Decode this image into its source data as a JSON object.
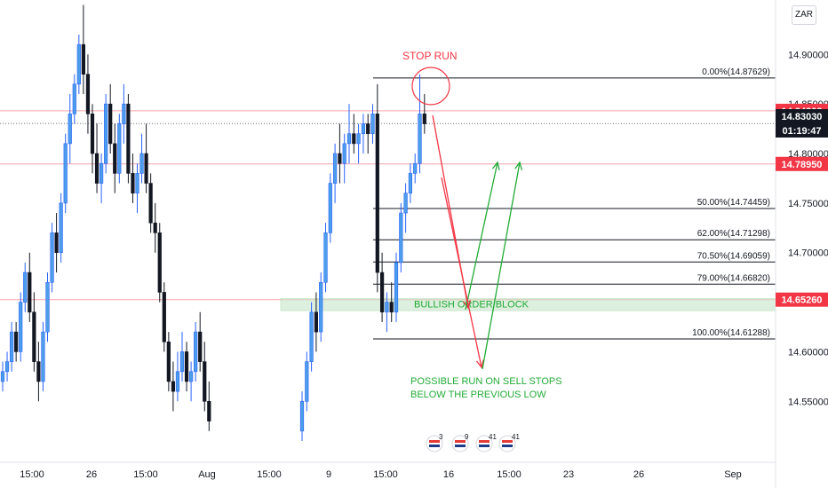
{
  "currency_button": "ZAR",
  "chart_data": {
    "type": "candlestick",
    "y_ticks": [
      "14.90000",
      "14.85000",
      "14.80000",
      "14.75000",
      "14.70000",
      "14.65000",
      "14.60000",
      "14.55000"
    ],
    "x_ticks": [
      "15:00",
      "26",
      "15:00",
      "Aug",
      "15:00",
      "9",
      "15:00",
      "16",
      "15:00",
      "23",
      "26",
      "Sep"
    ],
    "price_tags": [
      {
        "label": "14.84308",
        "value": 14.84308,
        "bg": "#f23645",
        "fg": "#ffffff"
      },
      {
        "label": "14.83030",
        "value": 14.8303,
        "bg": "#131722",
        "fg": "#ffffff"
      },
      {
        "label": "01:19:47",
        "value": 14.8235,
        "bg": "#131722",
        "fg": "#ffffff"
      },
      {
        "label": "14.78950",
        "value": 14.7895,
        "bg": "#f23645",
        "fg": "#ffffff"
      },
      {
        "label": "14.65260",
        "value": 14.6526,
        "bg": "#f23645",
        "fg": "#ffffff"
      }
    ],
    "horizontal_lines": [
      {
        "value": 14.84308,
        "color": "#f23645"
      },
      {
        "value": 14.7895,
        "color": "#f23645"
      },
      {
        "value": 14.6526,
        "color": "#f23645"
      }
    ],
    "fib_levels": [
      {
        "label": "0.00%(14.87629)",
        "value": 14.87629
      },
      {
        "label": "50.00%(14.74459)",
        "value": 14.74459
      },
      {
        "label": "62.00%(14.71298)",
        "value": 14.71298
      },
      {
        "label": "70.50%(14.69059)",
        "value": 14.69059
      },
      {
        "label": "79.00%(14.66820)",
        "value": 14.6682
      },
      {
        "label": "100.00%(14.61288)",
        "value": 14.61288
      }
    ],
    "annotations": {
      "stop_run": "STOP RUN",
      "order_block": "BULLISH ORDER BLOCK",
      "note_line1": "POSSIBLE RUN ON SELL STOPS",
      "note_line2": "BELOW THE PREVIOUS LOW"
    },
    "order_block_range": [
      14.6415,
      14.6535
    ],
    "event_badges": [
      "3",
      "9",
      "41",
      "41"
    ],
    "colors": {
      "up": "#2962ff",
      "up_body": "#4d9eea",
      "down": "#131722",
      "grid": "#e0e3eb",
      "red": "#f23645",
      "green": "#22ab36"
    },
    "candles_left": [
      [
        14.57,
        14.59,
        14.56,
        14.58
      ],
      [
        14.58,
        14.6,
        14.57,
        14.59
      ],
      [
        14.59,
        14.63,
        14.58,
        14.62
      ],
      [
        14.62,
        14.63,
        14.59,
        14.6
      ],
      [
        14.6,
        14.66,
        14.59,
        14.65
      ],
      [
        14.65,
        14.69,
        14.64,
        14.68
      ],
      [
        14.68,
        14.7,
        14.63,
        14.64
      ],
      [
        14.64,
        14.66,
        14.58,
        14.59
      ],
      [
        14.59,
        14.61,
        14.55,
        14.57
      ],
      [
        14.57,
        14.63,
        14.56,
        14.62
      ],
      [
        14.62,
        14.68,
        14.61,
        14.67
      ],
      [
        14.67,
        14.73,
        14.66,
        14.72
      ],
      [
        14.72,
        14.74,
        14.68,
        14.7
      ],
      [
        14.7,
        14.76,
        14.69,
        14.75
      ],
      [
        14.75,
        14.82,
        14.74,
        14.81
      ],
      [
        14.81,
        14.86,
        14.79,
        14.84
      ],
      [
        14.84,
        14.88,
        14.83,
        14.87
      ],
      [
        14.87,
        14.92,
        14.86,
        14.91
      ],
      [
        14.91,
        14.95,
        14.86,
        14.88
      ],
      [
        14.88,
        14.9,
        14.82,
        14.84
      ],
      [
        14.84,
        14.85,
        14.78,
        14.8
      ],
      [
        14.8,
        14.83,
        14.76,
        14.77
      ],
      [
        14.77,
        14.8,
        14.75,
        14.79
      ],
      [
        14.79,
        14.86,
        14.78,
        14.85
      ],
      [
        14.85,
        14.87,
        14.8,
        14.81
      ],
      [
        14.81,
        14.83,
        14.76,
        14.78
      ],
      [
        14.78,
        14.84,
        14.77,
        14.83
      ],
      [
        14.83,
        14.87,
        14.81,
        14.85
      ],
      [
        14.85,
        14.86,
        14.77,
        14.78
      ],
      [
        14.78,
        14.8,
        14.75,
        14.76
      ],
      [
        14.76,
        14.79,
        14.74,
        14.78
      ],
      [
        14.78,
        14.82,
        14.77,
        14.8
      ],
      [
        14.8,
        14.83,
        14.76,
        14.77
      ],
      [
        14.77,
        14.78,
        14.72,
        14.73
      ],
      [
        14.73,
        14.75,
        14.7,
        14.72
      ],
      [
        14.72,
        14.73,
        14.65,
        14.66
      ],
      [
        14.66,
        14.67,
        14.6,
        14.61
      ],
      [
        14.61,
        14.62,
        14.56,
        14.57
      ],
      [
        14.57,
        14.59,
        14.54,
        14.56
      ],
      [
        14.56,
        14.6,
        14.55,
        14.58
      ],
      [
        14.58,
        14.62,
        14.57,
        14.6
      ],
      [
        14.6,
        14.61,
        14.56,
        14.57
      ],
      [
        14.57,
        14.59,
        14.55,
        14.58
      ],
      [
        14.58,
        14.63,
        14.57,
        14.62
      ],
      [
        14.62,
        14.64,
        14.58,
        14.59
      ],
      [
        14.59,
        14.61,
        14.54,
        14.55
      ],
      [
        14.55,
        14.57,
        14.52,
        14.53
      ]
    ],
    "candles_right": [
      [
        14.52,
        14.56,
        14.51,
        14.55
      ],
      [
        14.55,
        14.6,
        14.54,
        14.59
      ],
      [
        14.59,
        14.65,
        14.58,
        14.64
      ],
      [
        14.64,
        14.66,
        14.6,
        14.62
      ],
      [
        14.62,
        14.68,
        14.61,
        14.67
      ],
      [
        14.67,
        14.73,
        14.66,
        14.72
      ],
      [
        14.72,
        14.78,
        14.71,
        14.77
      ],
      [
        14.77,
        14.81,
        14.75,
        14.8
      ],
      [
        14.8,
        14.83,
        14.77,
        14.79
      ],
      [
        14.79,
        14.82,
        14.77,
        14.81
      ],
      [
        14.81,
        14.85,
        14.79,
        14.82
      ],
      [
        14.82,
        14.84,
        14.8,
        14.81
      ],
      [
        14.81,
        14.83,
        14.79,
        14.82
      ],
      [
        14.82,
        14.84,
        14.8,
        14.83
      ],
      [
        14.83,
        14.84,
        14.8,
        14.82
      ],
      [
        14.82,
        14.85,
        14.81,
        14.84
      ],
      [
        14.84,
        14.87,
        14.66,
        14.68
      ],
      [
        14.68,
        14.7,
        14.63,
        14.64
      ],
      [
        14.64,
        14.66,
        14.62,
        14.65
      ],
      [
        14.65,
        14.67,
        14.63,
        14.64
      ],
      [
        14.64,
        14.7,
        14.63,
        14.69
      ],
      [
        14.69,
        14.75,
        14.68,
        14.74
      ],
      [
        14.74,
        14.77,
        14.72,
        14.76
      ],
      [
        14.76,
        14.79,
        14.75,
        14.78
      ],
      [
        14.78,
        14.8,
        14.77,
        14.79
      ],
      [
        14.79,
        14.88,
        14.78,
        14.84
      ],
      [
        14.84,
        14.86,
        14.82,
        14.83
      ]
    ]
  }
}
